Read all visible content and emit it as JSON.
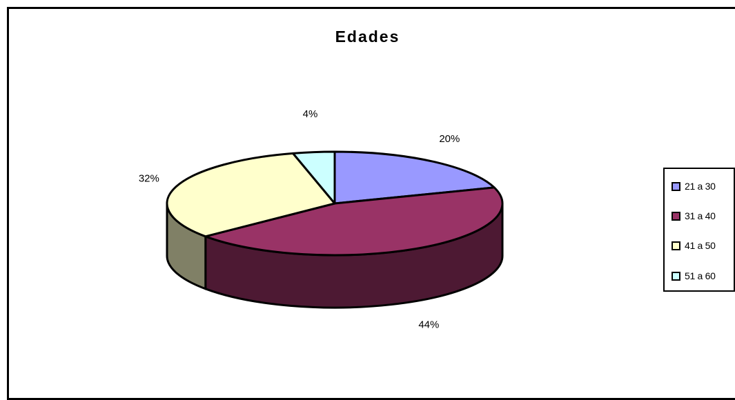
{
  "chart_data": {
    "type": "pie",
    "title": "Edades",
    "categories": [
      "21 a 30",
      "31 a 40",
      "41 a 50",
      "51 a 60"
    ],
    "values": [
      20,
      44,
      32,
      4
    ],
    "data_labels": [
      "20%",
      "44%",
      "32%",
      "4%"
    ],
    "colors": [
      "#9999ff",
      "#993366",
      "#ffffcc",
      "#ccffff"
    ],
    "side_colors": [
      "#4c4c80",
      "#4d1933",
      "#808066",
      "#668080"
    ],
    "three_d": true,
    "legend_position": "right"
  }
}
